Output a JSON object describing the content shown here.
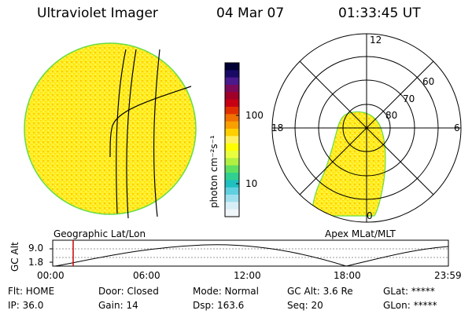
{
  "header": {
    "title": "Ultraviolet Imager",
    "date": "04 Mar 07",
    "time": "01:33:45 UT"
  },
  "colorbar": {
    "unit_label": "photon cm⁻²s⁻¹",
    "ticks": [
      "100",
      "10"
    ],
    "colors": [
      "#000033",
      "#1a0a66",
      "#4b1a8c",
      "#7a0a5a",
      "#a00028",
      "#c80014",
      "#e03000",
      "#f07000",
      "#f8a000",
      "#ffd000",
      "#fff060",
      "#ffff00",
      "#e8ff40",
      "#b0f040",
      "#60e060",
      "#30d090",
      "#20c0c0",
      "#60d0e0",
      "#a0e0ee",
      "#d8eef6",
      "#f0f6fa"
    ]
  },
  "image": {
    "label": "Geographic Lat/Lon"
  },
  "polar": {
    "label": "Apex MLat/MLT",
    "mlt_labels": [
      "12",
      "18",
      "6",
      "0"
    ],
    "lat_labels": [
      "60",
      "70",
      "80"
    ]
  },
  "altitude_plot": {
    "ylabel": "GC Alt",
    "yticks": [
      "9.0",
      "1.8"
    ],
    "xticks": [
      "00:00",
      "06:00",
      "12:00",
      "18:00",
      "23:59"
    ]
  },
  "status": {
    "flt": "Flt: HOME",
    "door": "Door: Closed",
    "mode": "Mode: Normal",
    "gc_alt": "GC Alt: 3.6 Re",
    "glat": "GLat: *****",
    "ip": "IP: 36.0",
    "gain": "Gain: 14",
    "dsp": "Dsp:   163.6",
    "seq": "Seq: 20",
    "glon": "GLon: *****"
  },
  "colors": {
    "yellow": "#ffee22",
    "orange": "#ffcc00",
    "green_edge": "#66dd44",
    "marker": "#cc0000"
  }
}
